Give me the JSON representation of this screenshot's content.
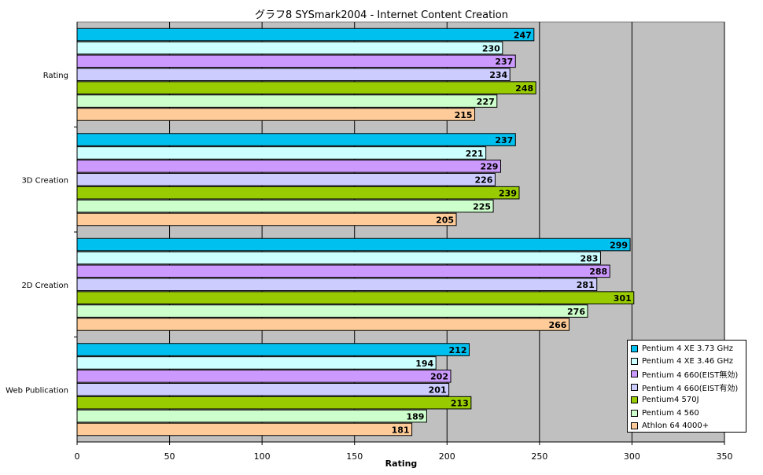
{
  "chart_data": {
    "type": "bar",
    "orientation": "horizontal",
    "title": "グラフ8  SYSmark2004 - Internet Content Creation",
    "xlabel": "Rating",
    "xlim": [
      0,
      350
    ],
    "xticks": [
      "0",
      "50",
      "100",
      "150",
      "200",
      "250",
      "300",
      "350"
    ],
    "grid": true,
    "legend_position": "bottom-right",
    "categories": [
      "Rating",
      "3D Creation",
      "2D Creation",
      "Web Publication"
    ],
    "series": [
      {
        "name": "Pentium 4 XE 3.73 GHz",
        "color": "#00c0f0",
        "values": [
          247,
          237,
          299,
          212
        ]
      },
      {
        "name": "Pentium 4 XE 3.46 GHz",
        "color": "#ccffff",
        "values": [
          230,
          221,
          283,
          194
        ]
      },
      {
        "name": "Pentium 4 660(EIST無効)",
        "color": "#cc99ff",
        "values": [
          237,
          229,
          288,
          202
        ]
      },
      {
        "name": "Pentium 4 660(EIST有効)",
        "color": "#ccccff",
        "values": [
          234,
          226,
          281,
          201
        ]
      },
      {
        "name": "Pentium4 570J",
        "color": "#99cc00",
        "values": [
          248,
          239,
          301,
          213
        ]
      },
      {
        "name": "Pentium 4 560",
        "color": "#ccffcc",
        "values": [
          227,
          225,
          276,
          189
        ]
      },
      {
        "name": "Athlon 64 4000+",
        "color": "#ffcc99",
        "values": [
          215,
          205,
          266,
          181
        ]
      }
    ]
  }
}
